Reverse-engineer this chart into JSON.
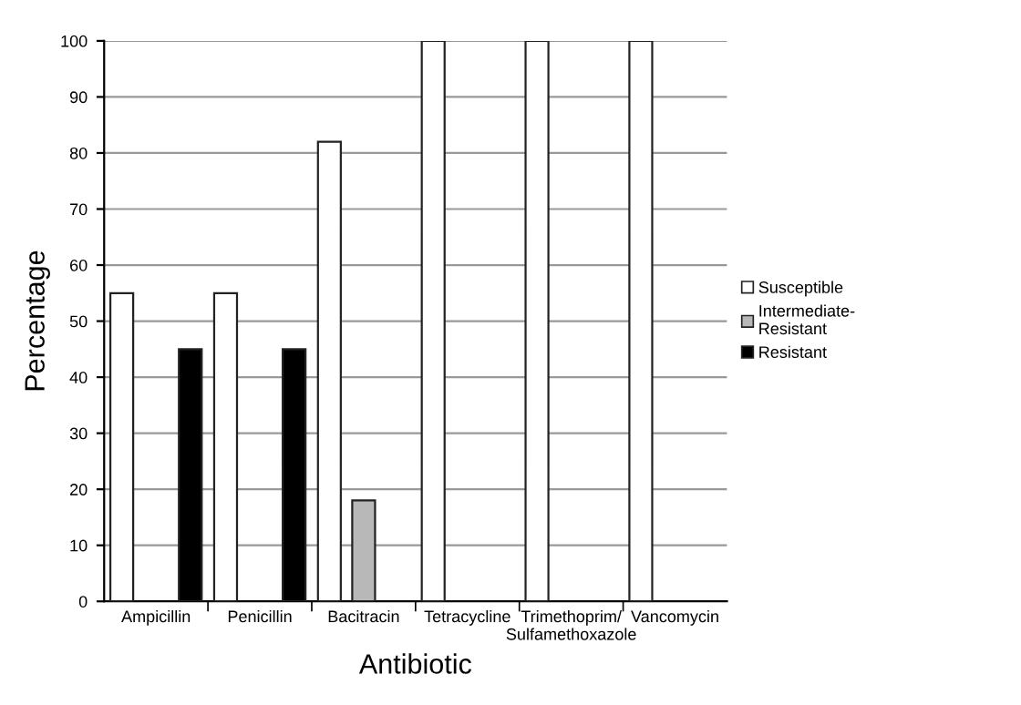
{
  "chart_data": {
    "type": "bar",
    "xlabel": "Antibiotic",
    "ylabel": "Percentage",
    "categories": [
      "Ampicillin",
      "Penicillin",
      "Bacitracin",
      "Tetracycline",
      "Trimethoprim/\nSulfamethoxazole",
      "Vancomycin"
    ],
    "series": [
      {
        "name": "Susceptible",
        "color": "#ffffff",
        "values": [
          55,
          55,
          82,
          100,
          100,
          100
        ]
      },
      {
        "name": "Intermediate-\nResistant",
        "color": "#b8b8b8",
        "values": [
          0,
          0,
          18,
          0,
          0,
          0
        ]
      },
      {
        "name": "Resistant",
        "color": "#000000",
        "values": [
          45,
          45,
          0,
          0,
          0,
          0
        ]
      }
    ],
    "ylim": [
      0,
      100
    ],
    "yticks": [
      0,
      10,
      20,
      30,
      40,
      50,
      60,
      70,
      80,
      90,
      100
    ],
    "grid": "y",
    "legend": "right"
  }
}
